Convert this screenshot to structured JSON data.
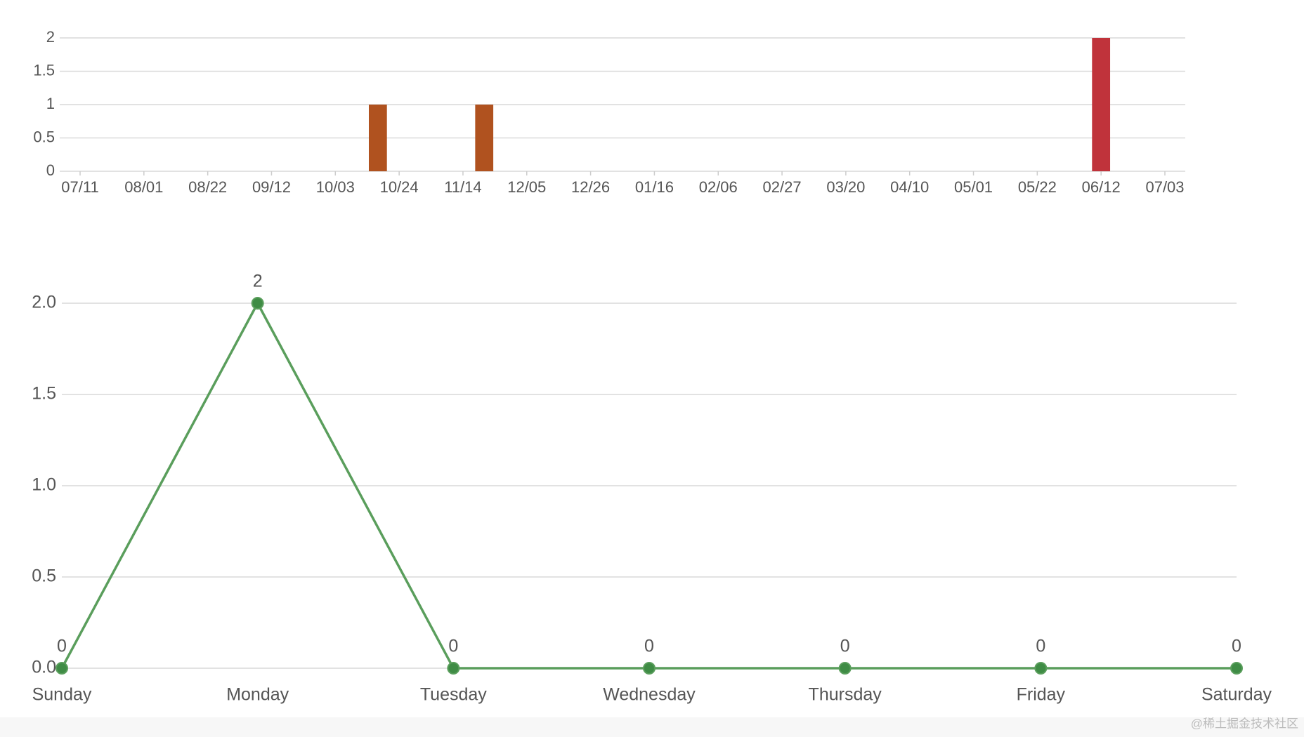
{
  "chart_data": [
    {
      "type": "bar",
      "categories": [
        "07/11",
        null,
        null,
        "08/01",
        null,
        null,
        "08/22",
        null,
        null,
        "09/12",
        null,
        null,
        "10/03",
        null,
        null,
        "10/24",
        null,
        null,
        "11/14",
        null,
        null,
        "12/05",
        null,
        null,
        "12/26",
        null,
        null,
        "01/16",
        null,
        null,
        "02/06",
        null,
        null,
        "02/27",
        null,
        null,
        "03/20",
        null,
        null,
        "04/10",
        null,
        null,
        "05/01",
        null,
        null,
        "05/22",
        null,
        null,
        "06/12",
        null,
        null,
        "07/03"
      ],
      "values": [
        0,
        0,
        0,
        0,
        0,
        0,
        0,
        0,
        0,
        0,
        0,
        0,
        0,
        0,
        1,
        0,
        0,
        0,
        0,
        1,
        0,
        0,
        0,
        0,
        0,
        0,
        0,
        0,
        0,
        0,
        0,
        0,
        0,
        0,
        0,
        0,
        0,
        0,
        0,
        0,
        0,
        0,
        0,
        0,
        0,
        0,
        0,
        0,
        2,
        0,
        0,
        0
      ],
      "color_scale": [
        {
          "value": 1,
          "color": "#b0521f"
        },
        {
          "value": 2,
          "color": "#c0333b"
        }
      ],
      "ylim": [
        0,
        2
      ],
      "yticks": [
        0,
        0.5,
        1,
        1.5,
        2
      ],
      "grid": true
    },
    {
      "type": "line",
      "categories": [
        "Sunday",
        "Monday",
        "Tuesday",
        "Wednesday",
        "Thursday",
        "Friday",
        "Saturday"
      ],
      "values": [
        0,
        2,
        0,
        0,
        0,
        0,
        0
      ],
      "color": "#5a9e5c",
      "marker_color": "#3f8c45",
      "ylim": [
        0,
        2
      ],
      "yticks": [
        {
          "value": 0,
          "label": "0.0"
        },
        {
          "value": 0.5,
          "label": "0.5"
        },
        {
          "value": 1,
          "label": "1.0"
        },
        {
          "value": 1.5,
          "label": "1.5"
        },
        {
          "value": 2,
          "label": "2.0"
        }
      ],
      "grid": true,
      "data_labels": true
    }
  ],
  "watermark": "@稀土掘金技术社区"
}
